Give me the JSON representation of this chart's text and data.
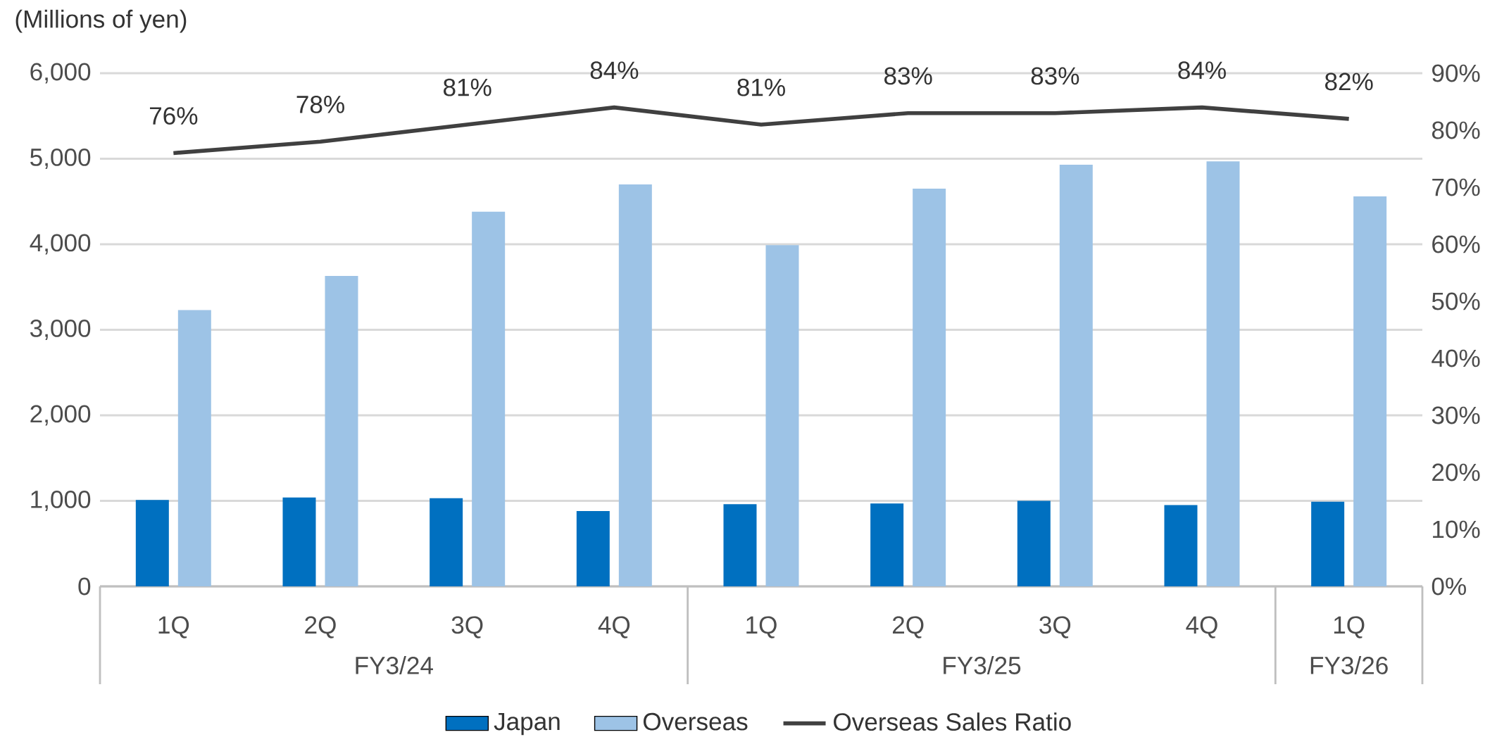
{
  "chart_data": {
    "type": "bar",
    "ylabel": "(Millions of yen)",
    "categories": [
      "1Q",
      "2Q",
      "3Q",
      "4Q",
      "1Q",
      "2Q",
      "3Q",
      "4Q",
      "1Q"
    ],
    "annotations": [
      "FY3/24",
      "FY3/25",
      "FY3/26"
    ],
    "series": [
      {
        "name": "Japan",
        "color": "#0070c0",
        "values": [
          1010,
          1040,
          1030,
          880,
          960,
          970,
          1000,
          950,
          990
        ]
      },
      {
        "name": "Overseas",
        "color": "#9dc3e6",
        "values": [
          3230,
          3630,
          4380,
          4700,
          3990,
          4650,
          4930,
          4970,
          4560
        ]
      },
      {
        "name": "Overseas Sales Ratio",
        "type": "line",
        "axis": "y2",
        "color": "#404040",
        "values": [
          76,
          78,
          81,
          84,
          81,
          83,
          83,
          84,
          82
        ],
        "value_labels": [
          "76%",
          "78%",
          "81%",
          "84%",
          "81%",
          "83%",
          "83%",
          "84%",
          "82%"
        ]
      }
    ],
    "ylim": [
      0,
      6000
    ],
    "yticks": [
      0,
      {
        "value": 1000,
        "label": "1,000"
      },
      {
        "value": 2000,
        "label": "2,000"
      },
      {
        "value": 3000,
        "label": "3,000"
      },
      {
        "value": 4000,
        "label": "4,000"
      },
      {
        "value": 5000,
        "label": "5,000"
      },
      {
        "value": 6000,
        "label": "6,000"
      }
    ],
    "y2lim": [
      0,
      90
    ],
    "y2ticks": [
      {
        "value": 0,
        "label": "0%"
      },
      {
        "value": 10,
        "label": "10%"
      },
      {
        "value": 20,
        "label": "20%"
      },
      {
        "value": 30,
        "label": "30%"
      },
      {
        "value": 40,
        "label": "40%"
      },
      {
        "value": 50,
        "label": "50%"
      },
      {
        "value": 60,
        "label": "60%"
      },
      {
        "value": 70,
        "label": "70%"
      },
      {
        "value": 80,
        "label": "80%"
      },
      {
        "value": 90,
        "label": "90%"
      }
    ],
    "grid": "y",
    "legend": "bottom",
    "marker": "none"
  }
}
